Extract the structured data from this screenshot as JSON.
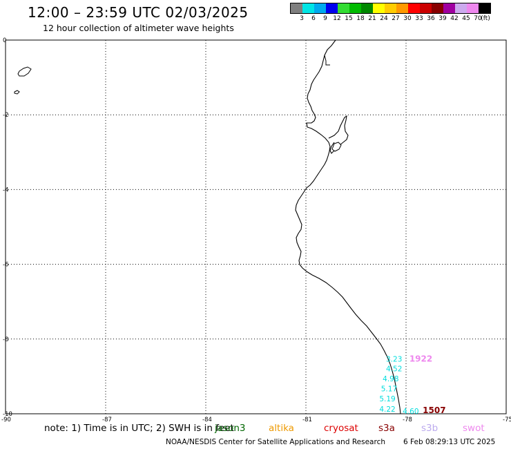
{
  "header": {
    "title": "12:00 – 23:59 UTC 02/03/2025",
    "subtitle": "12 hour collection of altimeter wave heights"
  },
  "colorbar": {
    "colors": [
      "#7f7f7f",
      "#00e5e5",
      "#00aaee",
      "#0000ee",
      "#33dd33",
      "#00bb00",
      "#008800",
      "#ffff00",
      "#ffcc00",
      "#ff9900",
      "#ff0000",
      "#cc0000",
      "#880000",
      "#a000a0",
      "#ccaaee",
      "#ee88ee",
      "#000000"
    ],
    "labels": [
      "3",
      "6",
      "9",
      "12",
      "15",
      "18",
      "21",
      "24",
      "27",
      "30",
      "33",
      "36",
      "39",
      "42",
      "45",
      "70",
      "(ft)"
    ]
  },
  "map": {
    "lon_range": [
      -90,
      -75
    ],
    "lat_range": [
      -10,
      0
    ],
    "x_ticks": [
      "-90",
      "-87",
      "-84",
      "-81",
      "-78",
      "-75"
    ],
    "y_ticks": [
      "0",
      "-2",
      "-4",
      "-6",
      "-8",
      "-10"
    ],
    "wave_labels": [
      {
        "text": "3.23",
        "lon": -78.6,
        "lat": -8.6
      },
      {
        "text": "4.52",
        "lon": -78.6,
        "lat": -8.86
      },
      {
        "text": "4.98",
        "lon": -78.7,
        "lat": -9.13
      },
      {
        "text": "5.17",
        "lon": -78.75,
        "lat": -9.4
      },
      {
        "text": "5.19",
        "lon": -78.8,
        "lat": -9.67
      },
      {
        "text": "4.22",
        "lon": -78.8,
        "lat": -9.94
      },
      {
        "text": "4.60",
        "lon": -78.1,
        "lat": -10.0
      }
    ],
    "wave_label_color": "#00dddd",
    "ids": [
      {
        "text": "1922",
        "lon": -77.9,
        "lat": -8.6,
        "color": "#ee88ee"
      },
      {
        "text": "1507",
        "lon": -77.5,
        "lat": -9.98,
        "color": "#880000"
      }
    ]
  },
  "note": {
    "text": "note: 1) Time is in UTC; 2) SWH is in feet",
    "satellites": [
      {
        "name": "jason3",
        "color": "#006600"
      },
      {
        "name": "altika",
        "color": "#ee9900"
      },
      {
        "name": "cryosat",
        "color": "#dd0000"
      },
      {
        "name": "s3a",
        "color": "#880000"
      },
      {
        "name": "s3b",
        "color": "#bbaaee"
      },
      {
        "name": "swot",
        "color": "#ee88ee"
      }
    ]
  },
  "footer": {
    "credit": "NOAA/NESDIS Center for Satellite Applications and Research",
    "timestamp": "6 Feb 08:29:13 UTC 2025"
  }
}
